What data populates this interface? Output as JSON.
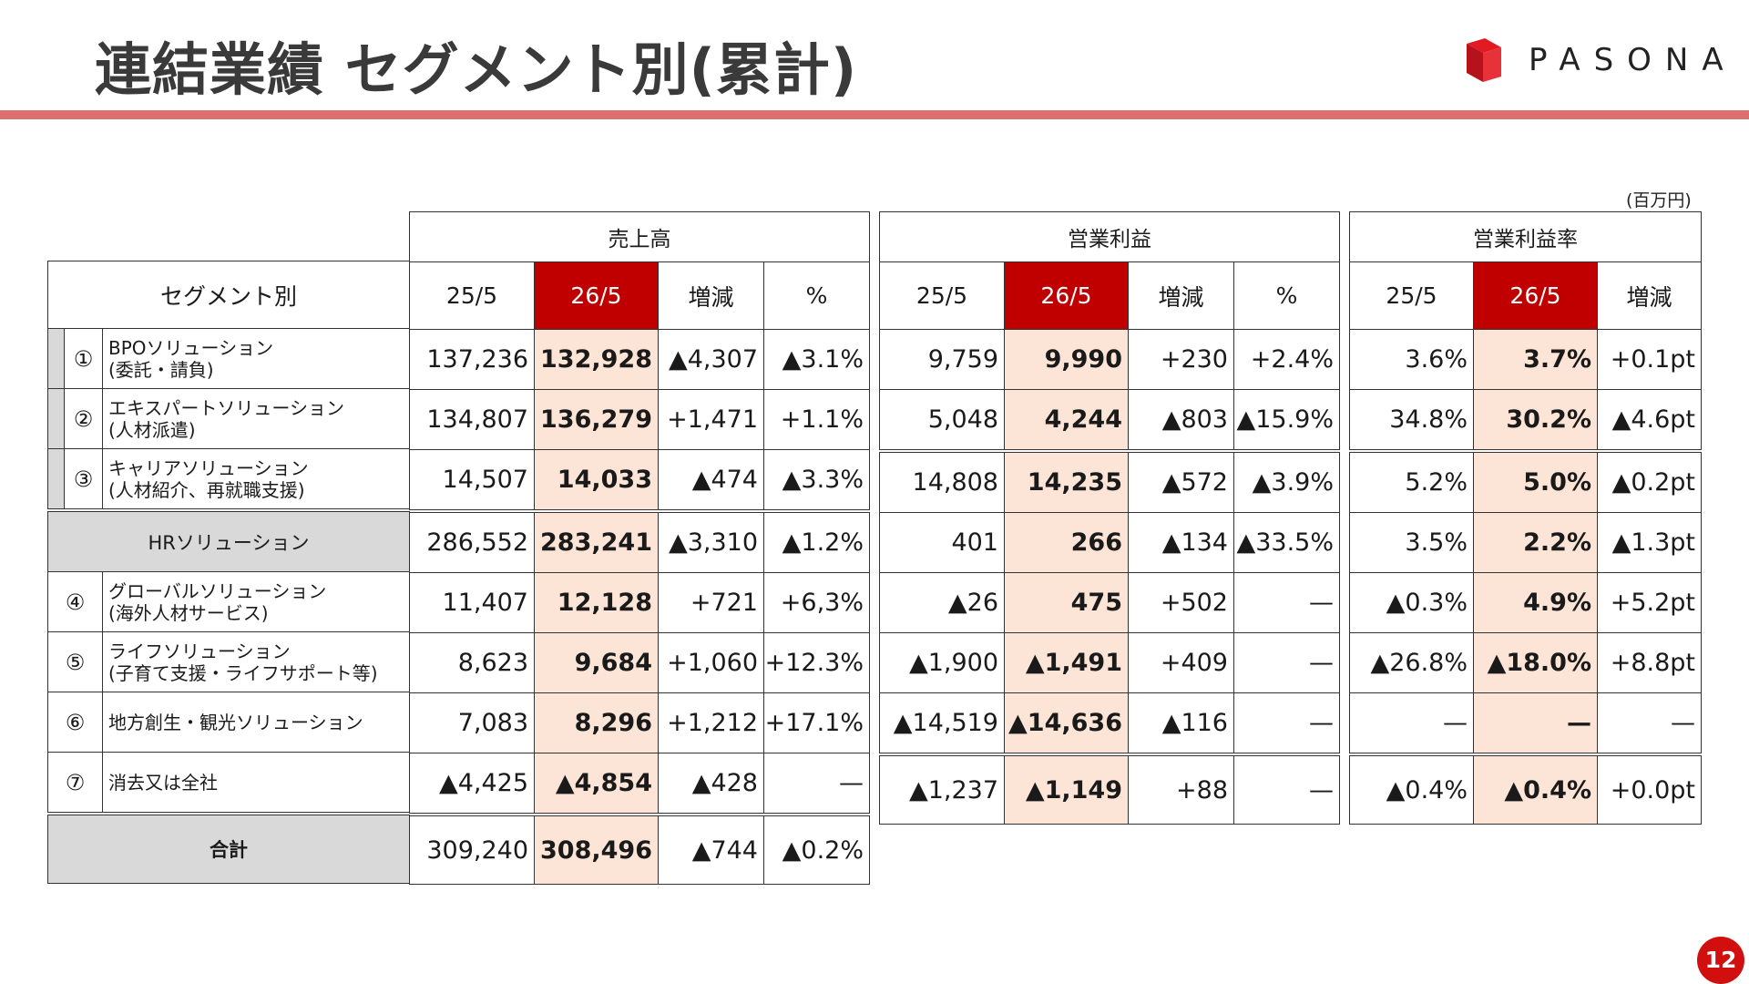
{
  "title": "連結業績 セグメント別(累計)",
  "logo": {
    "text": "PASONA"
  },
  "unit": "(百万円)",
  "groups": {
    "sales": "売上高",
    "op": "営業利益",
    "margin": "営業利益率"
  },
  "col_labels": {
    "segment": "セグメント別",
    "prev": "25/5",
    "curr": "26/5",
    "change": "増減",
    "pct": "%"
  },
  "rows": {
    "r1": {
      "num": "①",
      "label": [
        "BPOソリューション",
        "(委託・請負)"
      ],
      "sales": [
        "137,236",
        "132,928",
        "▲4,307",
        "▲3.1%"
      ]
    },
    "r2": {
      "num": "②",
      "label": [
        "エキスパートソリューション",
        "(人材派遣)"
      ],
      "sales": [
        "134,807",
        "136,279",
        "+1,471",
        "+1.1%"
      ]
    },
    "r12": {
      "op": [
        "9,759",
        "9,990",
        "+230",
        "+2.4%"
      ],
      "margin": [
        "3.6%",
        "3.7%",
        "+0.1pt"
      ]
    },
    "r3": {
      "num": "③",
      "label": [
        "キャリアソリューション",
        "(人材紹介、再就職支援)"
      ],
      "sales": [
        "14,507",
        "14,033",
        "▲474",
        "▲3.3%"
      ],
      "op": [
        "5,048",
        "4,244",
        "▲803",
        "▲15.9%"
      ],
      "margin": [
        "34.8%",
        "30.2%",
        "▲4.6pt"
      ]
    },
    "hr": {
      "label": "HRソリューション",
      "sales": [
        "286,552",
        "283,241",
        "▲3,310",
        "▲1.2%"
      ],
      "op": [
        "14,808",
        "14,235",
        "▲572",
        "▲3.9%"
      ],
      "margin": [
        "5.2%",
        "5.0%",
        "▲0.2pt"
      ]
    },
    "r4": {
      "num": "④",
      "label": [
        "グローバルソリューション",
        "(海外人材サービス)"
      ],
      "sales": [
        "11,407",
        "12,128",
        "+721",
        "+6,3%"
      ],
      "op": [
        "401",
        "266",
        "▲134",
        "▲33.5%"
      ],
      "margin": [
        "3.5%",
        "2.2%",
        "▲1.3pt"
      ]
    },
    "r5": {
      "num": "⑤",
      "label": [
        "ライフソリューション",
        "(子育て支援・ライフサポート等)"
      ],
      "sales": [
        "8,623",
        "9,684",
        "+1,060",
        "+12.3%"
      ],
      "op": [
        "▲26",
        "475",
        "+502",
        "—"
      ],
      "margin": [
        "▲0.3%",
        "4.9%",
        "+5.2pt"
      ]
    },
    "r6": {
      "num": "⑥",
      "label": [
        "地方創生・観光ソリューション"
      ],
      "sales": [
        "7,083",
        "8,296",
        "+1,212",
        "+17.1%"
      ],
      "op": [
        "▲1,900",
        "▲1,491",
        "+409",
        "—"
      ],
      "margin": [
        "▲26.8%",
        "▲18.0%",
        "+8.8pt"
      ]
    },
    "r7": {
      "num": "⑦",
      "label": [
        "消去又は全社"
      ],
      "sales": [
        "▲4,425",
        "▲4,854",
        "▲428",
        "—"
      ],
      "op": [
        "▲14,519",
        "▲14,636",
        "▲116",
        "—"
      ],
      "margin": [
        "—",
        "—",
        "—"
      ]
    },
    "total": {
      "label": "合計",
      "sales": [
        "309,240",
        "308,496",
        "▲744",
        "▲0.2%"
      ],
      "op": [
        "▲1,237",
        "▲1,149",
        "+88",
        "—"
      ],
      "margin": [
        "▲0.4%",
        "▲0.4%",
        "+0.0pt"
      ]
    }
  },
  "page_number": "12",
  "colors": {
    "accent_red": "#c00000",
    "rule_pink": "#dc7070",
    "highlight": "#fce4d6",
    "gray": "#d9d9d9"
  }
}
